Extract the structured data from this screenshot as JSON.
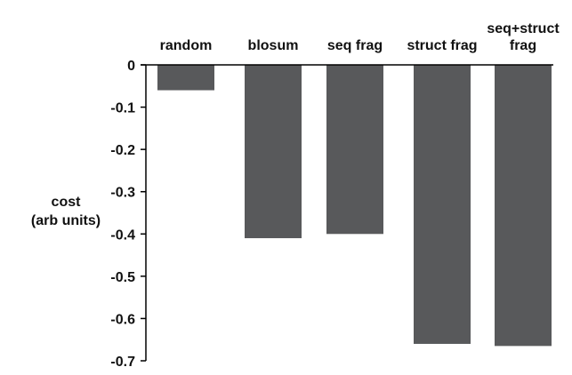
{
  "chart_data": {
    "type": "bar",
    "categories": [
      "random",
      "blosum",
      "seq frag",
      "struct frag",
      "seq+struct frag"
    ],
    "category_label_lines": [
      [
        "random"
      ],
      [
        "blosum"
      ],
      [
        "seq frag"
      ],
      [
        "struct frag"
      ],
      [
        "seq+struct",
        "frag"
      ]
    ],
    "values": [
      -0.06,
      -0.41,
      -0.4,
      -0.66,
      -0.665
    ],
    "ylabel": "cost (arb units)",
    "ylabel_lines": [
      "cost",
      "(arb units)"
    ],
    "ylim": [
      -0.7,
      0
    ],
    "yticks": [
      0,
      -0.1,
      -0.2,
      -0.3,
      -0.4,
      -0.5,
      -0.6,
      -0.7
    ],
    "ytick_labels": [
      "0",
      "-0.1",
      "-0.2",
      "-0.3",
      "-0.4",
      "-0.5",
      "-0.6",
      "-0.7"
    ],
    "grid": false,
    "legend": "none",
    "bar_color": "#58595b",
    "axis_color": "#000000"
  }
}
